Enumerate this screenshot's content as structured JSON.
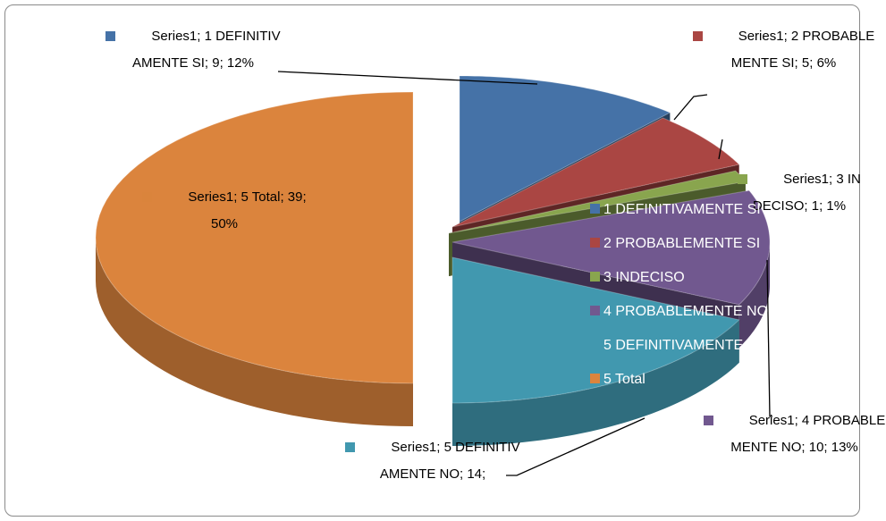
{
  "chart_data": {
    "type": "pie3d",
    "series_name": "Series1",
    "categories": [
      "1 DEFINITIVAMENTE SI",
      "2 PROBABLEMENTE SI",
      "3 INDECISO",
      "4 PROBABLEMENTE NO",
      "5 DEFINITIVAMENTE NO",
      "5 Total"
    ],
    "values": [
      9,
      5,
      1,
      10,
      14,
      39
    ],
    "value_labels": [
      "Series1; 1 DEFINITIVAMENTE SI; 9; 12%",
      "Series1; 2 PROBABLEMENTE SI; 5; 6%",
      "Series1; 3 INDECISO; 1; 1%",
      "Series1; 4 PROBABLEMENTE NO; 10; 13%",
      "Series1; 5 DEFINITIVAMENTE NO; 14;",
      "Series1; 5 Total; 39; 50%"
    ],
    "colors": [
      "#4572a7",
      "#aa4643",
      "#89a54e",
      "#71588f",
      "#4198af",
      "#db843d"
    ],
    "legend": "center"
  }
}
